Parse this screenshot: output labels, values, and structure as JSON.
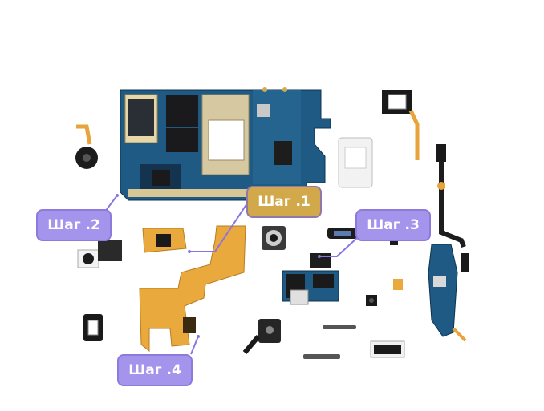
{
  "labels": {
    "step1": "Шаг .1",
    "step2": "Шаг .2",
    "step3": "Шаг .3",
    "step4": "Шаг .4"
  },
  "colors": {
    "label_purple": "#a594ec",
    "label_gold": "#d1a94b",
    "leader_line": "#8a75e0",
    "pcb_blue": "#1f5f8a",
    "flex_orange": "#e9a93c",
    "background": "#ffffff"
  },
  "icons": [
    "motherboard",
    "vibration-motor",
    "camera-module",
    "earpiece-speaker",
    "flex-cable",
    "display-connector",
    "sim-card-tray-board",
    "usb-port-board",
    "antenna-flex",
    "front-camera",
    "audio-jack",
    "side-buttons",
    "loudspeaker"
  ]
}
